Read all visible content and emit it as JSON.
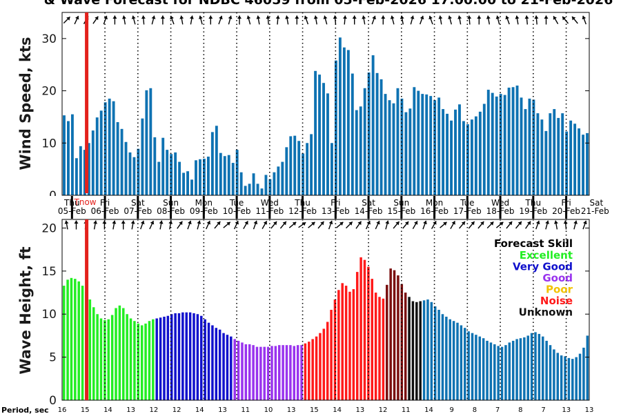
{
  "title": "& Wave Forecast for NDBC 46059 from 05-Feb-2026 17:00:00 to 21-Feb-2026",
  "colors": {
    "wind_bar": "#0e72b2",
    "now_line": "#e3211c",
    "skill_excellent": "#22ee22",
    "skill_very_good": "#1111cc",
    "skill_good": "#9933ee",
    "skill_poor": "#f2c200",
    "skill_noise": "#ff1a1a",
    "skill_unknown": "#111111",
    "skill_dark_red": "#7a0f0f",
    "skill_none": "#0e72b2"
  },
  "now_label": "Tnow",
  "period_label": "Period, sec",
  "legend": {
    "title": "Forecast Skill",
    "items": [
      {
        "label": "Excellent",
        "color": "#22ee22"
      },
      {
        "label": "Very Good",
        "color": "#1111cc"
      },
      {
        "label": "Good",
        "color": "#9933ee"
      },
      {
        "label": "Poor",
        "color": "#f2c200"
      },
      {
        "label": "Noise",
        "color": "#ff1a1a"
      },
      {
        "label": "Unknown",
        "color": "#111111"
      }
    ]
  },
  "chart_data": [
    {
      "type": "bar",
      "ylabel": "Wind Speed, kts",
      "ylim": [
        0,
        35
      ],
      "yticks": [
        0,
        10,
        20,
        30
      ],
      "xlim": [
        -0.3,
        15.7
      ],
      "day_labels": [
        {
          "dow": "Thu",
          "date": "05-Feb"
        },
        {
          "dow": "Fri",
          "date": "06-Feb"
        },
        {
          "dow": "Sat",
          "date": "07-Feb"
        },
        {
          "dow": "Sun",
          "date": "08-Feb"
        },
        {
          "dow": "Mon",
          "date": "09-Feb"
        },
        {
          "dow": "Tue",
          "date": "10-Feb"
        },
        {
          "dow": "Wed",
          "date": "11-Feb"
        },
        {
          "dow": "Thu",
          "date": "12-Feb"
        },
        {
          "dow": "Fri",
          "date": "13-Feb"
        },
        {
          "dow": "Sat",
          "date": "14-Feb"
        },
        {
          "dow": "Sun",
          "date": "15-Feb"
        },
        {
          "dow": "Mon",
          "date": "16-Feb"
        },
        {
          "dow": "Tue",
          "date": "17-Feb"
        },
        {
          "dow": "Wed",
          "date": "18-Feb"
        },
        {
          "dow": "Thu",
          "date": "19-Feb"
        },
        {
          "dow": "Fri",
          "date": "20-Feb"
        },
        {
          "dow": "Sat",
          "date": "21-Feb"
        }
      ],
      "values": [
        15.3,
        14.2,
        15.5,
        7.1,
        9.4,
        8.7,
        10,
        12.4,
        14.9,
        16.2,
        17.8,
        18.5,
        18,
        14,
        12.7,
        10.2,
        8.2,
        7.3,
        8.9,
        14.7,
        20.1,
        20.5,
        11.1,
        6.4,
        11,
        8.7,
        7.9,
        8.2,
        6.4,
        4.3,
        4.6,
        3,
        6.7,
        6.9,
        7,
        7.4,
        12.1,
        13.3,
        8.1,
        7.5,
        7.7,
        6.2,
        8.7,
        4.4,
        1.8,
        2.2,
        4.2,
        2.2,
        1.3,
        3.9,
        3.1,
        4.4,
        5.5,
        6.4,
        9.2,
        11.3,
        11.4,
        10.4,
        8,
        10,
        11.7,
        23.8,
        23.1,
        21.5,
        19.5,
        10,
        25.8,
        30.2,
        28.3,
        27.8,
        23.3,
        16.3,
        17,
        20.5,
        23.5,
        26.8,
        23.4,
        22.2,
        19.4,
        18.2,
        17.6,
        20.5,
        18.5,
        15.9,
        16.6,
        20.7,
        20,
        19.4,
        19.3,
        19,
        18.2,
        18.7,
        16.5,
        15.6,
        14.3,
        16.4,
        17.4,
        14.2,
        13.6,
        14.5,
        15.1,
        16,
        17.5,
        20.2,
        19.6,
        18.9,
        19.4,
        19.2,
        20.6,
        20.7,
        21,
        18.7,
        16.5,
        18.5,
        18.3,
        15.7,
        14.5,
        12.3,
        15.7,
        16.5,
        14.8,
        15.7,
        12.2,
        14.3,
        13.7,
        12.8,
        11.6,
        11.9
      ],
      "wind_arrows_deg": [
        45,
        25,
        30,
        35,
        20,
        0,
        350,
        345,
        355,
        15,
        0,
        340,
        350,
        10,
        345,
        0,
        20,
        15,
        0,
        345,
        350,
        355,
        5,
        350,
        0,
        340,
        350,
        345,
        355,
        5,
        0,
        350,
        20,
        0,
        345,
        350,
        15,
        20,
        340,
        350,
        345,
        350,
        355,
        0,
        350,
        345,
        340,
        350,
        355,
        355,
        0,
        330,
        320,
        320,
        340
      ],
      "wave_arrows_deg": [
        350,
        0,
        5,
        10,
        0,
        10,
        0,
        10,
        20,
        25,
        10,
        10,
        35,
        20,
        15,
        25,
        40,
        50,
        25,
        30,
        20,
        30,
        40,
        40,
        50,
        55,
        50,
        40,
        20,
        50,
        45,
        35,
        25,
        25,
        15,
        40,
        40,
        30,
        20,
        30,
        50,
        30,
        40,
        40,
        40,
        45,
        50,
        40,
        40,
        35,
        20,
        15,
        350,
        355,
        15,
        20
      ]
    },
    {
      "type": "bar",
      "ylabel": "Wave Height, ft",
      "ylim": [
        0,
        21
      ],
      "yticks": [
        0,
        5,
        10,
        15,
        20
      ],
      "xlim": [
        -0.3,
        15.7
      ],
      "values": [
        13.3,
        14,
        14.2,
        14.1,
        13.8,
        13.3,
        12.6,
        11.7,
        10.8,
        10,
        9.5,
        9.3,
        9.4,
        9.9,
        10.7,
        11,
        10.7,
        10,
        9.5,
        9.2,
        8.9,
        8.7,
        8.9,
        9.2,
        9.4,
        9.5,
        9.6,
        9.7,
        9.8,
        10,
        10.1,
        10.1,
        10.2,
        10.2,
        10.2,
        10.1,
        10,
        9.8,
        9.4,
        9,
        8.7,
        8.4,
        8.2,
        7.8,
        7.6,
        7.4,
        7.1,
        6.9,
        6.7,
        6.5,
        6.5,
        6.4,
        6.2,
        6.2,
        6.2,
        6.2,
        6.3,
        6.3,
        6.4,
        6.4,
        6.4,
        6.4,
        6.3,
        6.4,
        6.4,
        6.6,
        6.8,
        7.1,
        7.4,
        7.8,
        8.3,
        9.1,
        10.5,
        11.7,
        12.8,
        13.6,
        13.3,
        12.6,
        12.9,
        14.9,
        16.6,
        16.3,
        15.5,
        14.1,
        12.5,
        12,
        11.8,
        13.4,
        15.3,
        15.1,
        14.5,
        13.5,
        12.5,
        12,
        11.5,
        11.4,
        11.5,
        11.6,
        11.7,
        11.4,
        10.9,
        10.5,
        10,
        9.7,
        9.4,
        9.2,
        9,
        8.7,
        8.4,
        8,
        7.8,
        7.6,
        7.4,
        7.2,
        6.9,
        6.7,
        6.5,
        6.3,
        6.2,
        6.4,
        6.7,
        6.9,
        7.1,
        7.2,
        7.3,
        7.5,
        7.8,
        7.9,
        7.7,
        7.4,
        6.9,
        6.4,
        5.9,
        5.5,
        5.2,
        5.1,
        4.9,
        4.8,
        5,
        5.4,
        6.1,
        7.5
      ],
      "skill": [
        "e",
        "e",
        "e",
        "e",
        "e",
        "e",
        "e",
        "e",
        "e",
        "e",
        "e",
        "e",
        "e",
        "e",
        "e",
        "e",
        "e",
        "e",
        "e",
        "e",
        "e",
        "e",
        "e",
        "e",
        "e",
        "vg",
        "vg",
        "vg",
        "vg",
        "vg",
        "vg",
        "vg",
        "vg",
        "vg",
        "vg",
        "vg",
        "vg",
        "vg",
        "vg",
        "vg",
        "vg",
        "vg",
        "vg",
        "vg",
        "vg",
        "vg",
        "g",
        "g",
        "g",
        "g",
        "g",
        "g",
        "g",
        "g",
        "g",
        "g",
        "g",
        "g",
        "g",
        "g",
        "g",
        "g",
        "g",
        "g",
        "g",
        "n",
        "n",
        "n",
        "n",
        "n",
        "n",
        "n",
        "n",
        "n",
        "n",
        "n",
        "n",
        "n",
        "n",
        "n",
        "n",
        "n",
        "n",
        "n",
        "n",
        "n",
        "n",
        "dr",
        "dr",
        "dr",
        "dr",
        "dr",
        "dr",
        "u",
        "u",
        "u",
        "u",
        "x",
        "x",
        "x",
        "x",
        "x",
        "x",
        "x",
        "x",
        "x",
        "x",
        "x",
        "x",
        "x",
        "x",
        "x",
        "x",
        "x",
        "x",
        "x",
        "x",
        "x",
        "x",
        "x",
        "x",
        "x",
        "x",
        "x",
        "x",
        "x",
        "x",
        "x",
        "x",
        "x",
        "x",
        "x",
        "x",
        "x",
        "x",
        "x",
        "x",
        "x",
        "x",
        "x",
        "x"
      ],
      "period_ticks": [
        "16",
        "15",
        "14",
        "13",
        "12",
        "12",
        "14",
        "13",
        "11",
        "10",
        "13",
        "15",
        "14",
        "13",
        "12",
        "11",
        "14",
        "9",
        "8",
        "7",
        "8",
        "7",
        "13",
        "13"
      ]
    }
  ]
}
